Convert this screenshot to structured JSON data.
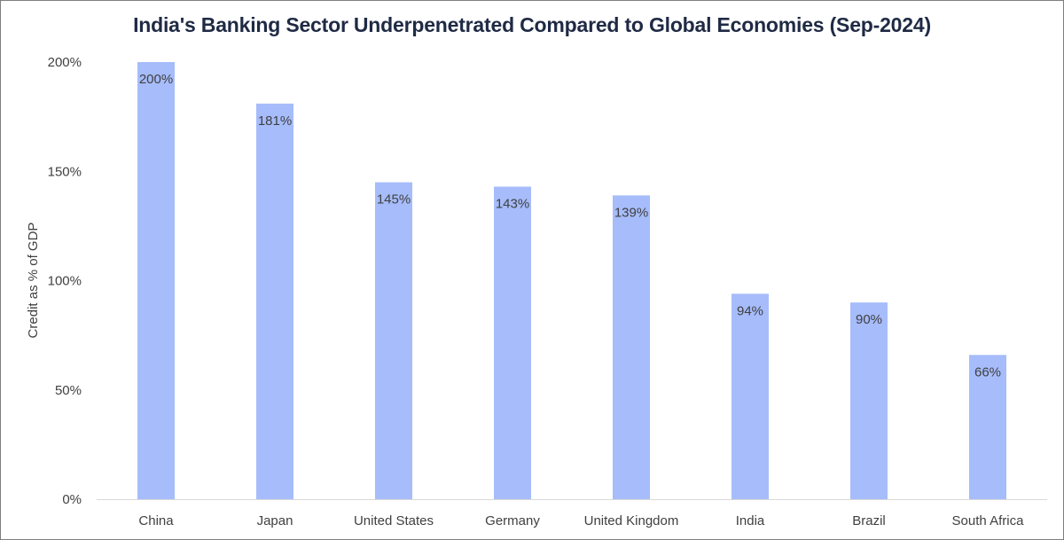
{
  "chart_data": {
    "type": "bar",
    "title": "India's Banking Sector Underpenetrated Compared to Global Economies (Sep-2024)",
    "xlabel": "",
    "ylabel": "Credit as % of GDP",
    "categories": [
      "China",
      "Japan",
      "United States",
      "Germany",
      "United Kingdom",
      "India",
      "Brazil",
      "South Africa"
    ],
    "values": [
      200,
      181,
      145,
      143,
      139,
      94,
      90,
      66
    ],
    "data_labels": [
      "200%",
      "181%",
      "145%",
      "143%",
      "139%",
      "94%",
      "90%",
      "66%"
    ],
    "ylim": [
      0,
      200
    ],
    "yticks": [
      0,
      50,
      100,
      150,
      200
    ],
    "ytick_labels": [
      "0%",
      "50%",
      "100%",
      "150%",
      "200%"
    ],
    "grid": false,
    "legend": "none",
    "bar_color": "#a6bcfb",
    "axis_color": "#d9d9d9",
    "title_color": "#1f2a44",
    "text_color": "#404040"
  }
}
